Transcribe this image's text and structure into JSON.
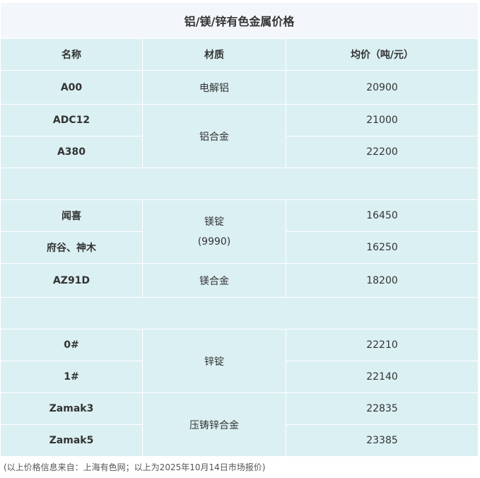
{
  "title": "铝/镁/锌有色金属价格",
  "headers": [
    "名称",
    "材质",
    "均价（吨/元）"
  ],
  "rows": [
    {
      "name": "A00",
      "material": "电解铝",
      "price": "20900"
    },
    {
      "name": "ADC12",
      "material": "铝合金",
      "price": "21000"
    },
    {
      "name": "A380",
      "price": "22200"
    },
    {
      "name": "闻喜",
      "material": "镁锭\n(9990)",
      "price": "16450"
    },
    {
      "name": "府谷、神木",
      "price": "16250"
    },
    {
      "name": "AZ91D",
      "material": "镁合金",
      "price": "18200"
    },
    {
      "name": "0#",
      "material": "锌锭",
      "price": "22210"
    },
    {
      "name": "1#",
      "price": "22140"
    },
    {
      "name": "Zamak3",
      "material": "压铸锌合金",
      "price": "22835"
    },
    {
      "name": "Zamak5",
      "price": "23385"
    }
  ],
  "footnote": "(以上价格信息来自：上海有色网；以上为2025年10月14日市场报价)"
}
